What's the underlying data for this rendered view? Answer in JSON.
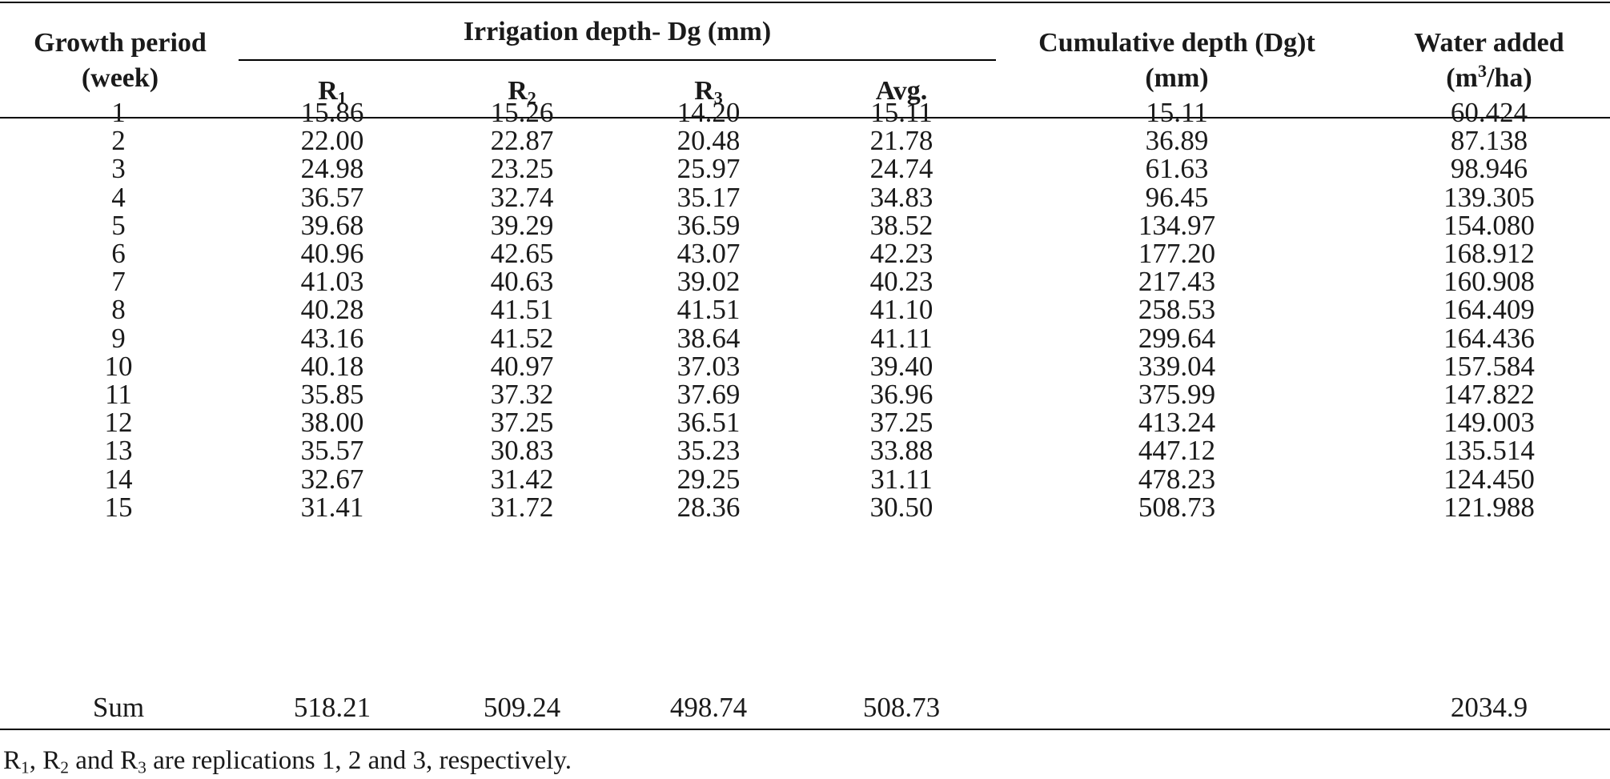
{
  "table": {
    "header": {
      "growth_period_line1": "Growth period",
      "growth_period_line2": "(week)",
      "irrigation_group": "Irrigation depth- Dg (mm)",
      "r_letter": "R",
      "r1_sub": "1",
      "r2_sub": "2",
      "r3_sub": "3",
      "avg": "Avg.",
      "cumulative_line1": "Cumulative depth (Dg)t",
      "cumulative_line2": "(mm)",
      "water_line1": "Water added",
      "water_line2_pre": "(m",
      "water_line2_sup": "3",
      "water_line2_post": "/ha)"
    },
    "rows": [
      [
        "1",
        "15.86",
        "15.26",
        "14.20",
        "15.11",
        "15.11",
        "60.424"
      ],
      [
        "2",
        "22.00",
        "22.87",
        "20.48",
        "21.78",
        "36.89",
        "87.138"
      ],
      [
        "3",
        "24.98",
        "23.25",
        "25.97",
        "24.74",
        "61.63",
        "98.946"
      ],
      [
        "4",
        "36.57",
        "32.74",
        "35.17",
        "34.83",
        "96.45",
        "139.305"
      ],
      [
        "5",
        "39.68",
        "39.29",
        "36.59",
        "38.52",
        "134.97",
        "154.080"
      ],
      [
        "6",
        "40.96",
        "42.65",
        "43.07",
        "42.23",
        "177.20",
        "168.912"
      ],
      [
        "7",
        "41.03",
        "40.63",
        "39.02",
        "40.23",
        "217.43",
        "160.908"
      ],
      [
        "8",
        "40.28",
        "41.51",
        "41.51",
        "41.10",
        "258.53",
        "164.409"
      ],
      [
        "9",
        "43.16",
        "41.52",
        "38.64",
        "41.11",
        "299.64",
        "164.436"
      ],
      [
        "10",
        "40.18",
        "40.97",
        "37.03",
        "39.40",
        "339.04",
        "157.584"
      ],
      [
        "11",
        "35.85",
        "37.32",
        "37.69",
        "36.96",
        "375.99",
        "147.822"
      ],
      [
        "12",
        "38.00",
        "37.25",
        "36.51",
        "37.25",
        "413.24",
        "149.003"
      ],
      [
        "13",
        "35.57",
        "30.83",
        "35.23",
        "33.88",
        "447.12",
        "135.514"
      ],
      [
        "14",
        "32.67",
        "31.42",
        "29.25",
        "31.11",
        "478.23",
        "124.450"
      ],
      [
        "15",
        "31.41",
        "31.72",
        "28.36",
        "30.50",
        "508.73",
        "121.988"
      ]
    ],
    "sum_row": [
      "Sum",
      "518.21",
      "509.24",
      "498.74",
      "508.73",
      "",
      "2034.9"
    ]
  },
  "footnote": {
    "r": "R",
    "s1": "1",
    "comma1": ", R",
    "s2": "2",
    "and": " and R",
    "s3": "3",
    "rest": " are replications 1, 2 and 3, respectively."
  }
}
